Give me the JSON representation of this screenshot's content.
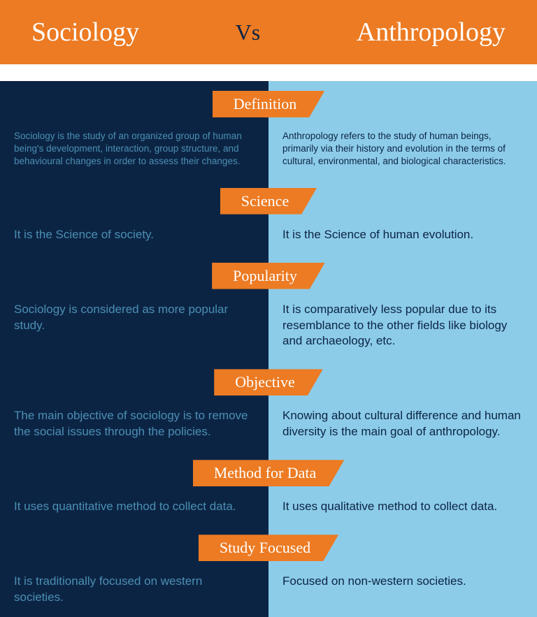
{
  "colors": {
    "orange": "#ec7b23",
    "navy": "#0c2444",
    "lightblue": "#8ccce9",
    "leftText": "#4a8fb3",
    "rightText": "#0c2444",
    "white": "#ffffff"
  },
  "header": {
    "left": "Sociology",
    "vs": "Vs",
    "right": "Anthropology",
    "fontSize": 38,
    "vsFontSize": 32
  },
  "sections": [
    {
      "title": "Definition",
      "size": "small",
      "left": "Sociology is the study of an organized group of human being's development, interaction, group structure, and behavioural changes in order to assess their changes.",
      "right": "Anthropology refers to the study of human beings, primarily via their history and evolution in the terms of cultural, environmental, and biological characteristics."
    },
    {
      "title": "Science",
      "size": "med",
      "left": "It is the Science of society.",
      "right": "It is the Science of human evolution."
    },
    {
      "title": "Popularity",
      "size": "med",
      "left": "Sociology is considered as more popular study.",
      "right": "It is comparatively less popular due to its resemblance to the other fields like biology and archaeology, etc."
    },
    {
      "title": "Objective",
      "size": "med",
      "left": "The main objective of sociology is to remove the social issues through the policies.",
      "right": "Knowing about cultural difference and human diversity is the main goal of anthropology."
    },
    {
      "title": "Method for Data",
      "size": "med",
      "left": "It uses quantitative method to collect data.",
      "right": "It uses qualitative method to collect data."
    },
    {
      "title": "Study Focused",
      "size": "med",
      "left": "It is traditionally focused on western societies.",
      "right": "Focused on non-western societies."
    }
  ]
}
